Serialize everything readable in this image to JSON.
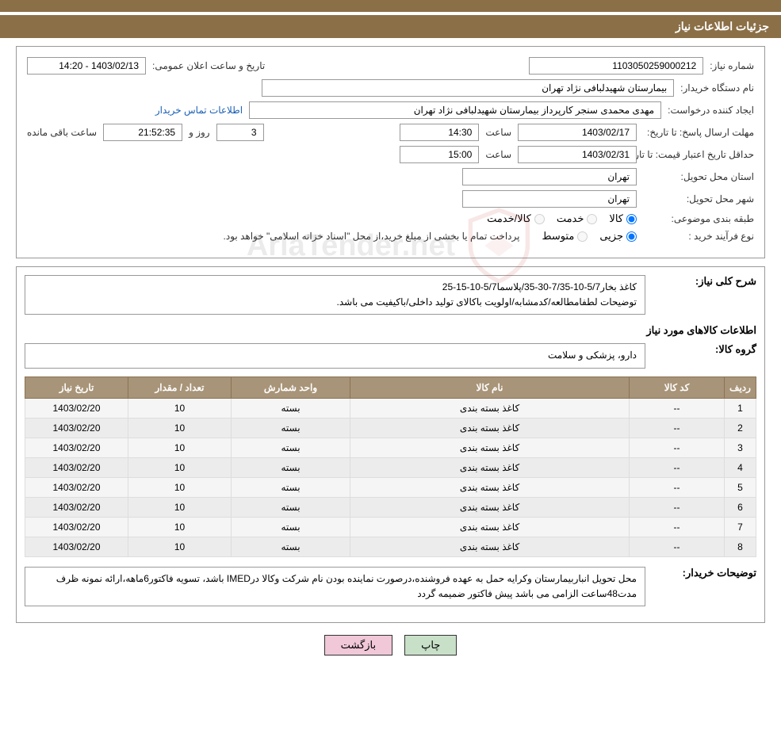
{
  "header": {
    "title": "جزئیات اطلاعات نیاز"
  },
  "info": {
    "need_number_label": "شماره نیاز:",
    "need_number": "1103050259000212",
    "announce_datetime_label": "تاریخ و ساعت اعلان عمومی:",
    "announce_datetime": "1403/02/13 - 14:20",
    "buyer_org_label": "نام دستگاه خریدار:",
    "buyer_org": "بیمارستان شهیدلبافی نژاد تهران",
    "requester_label": "ایجاد کننده درخواست:",
    "requester": "مهدی محمدی سنجر کارپرداز بیمارستان شهیدلبافی نژاد تهران",
    "contact_link": "اطلاعات تماس خریدار",
    "deadline_label": "مهلت ارسال پاسخ: تا تاریخ:",
    "deadline_date": "1403/02/17",
    "time_label": "ساعت",
    "deadline_time": "14:30",
    "days_and_label": "روز و",
    "days_remaining": "3",
    "countdown": "21:52:35",
    "remaining_label": "ساعت باقی مانده",
    "validity_label": "حداقل تاریخ اعتبار قیمت: تا تاریخ:",
    "validity_date": "1403/02/31",
    "validity_time": "15:00",
    "province_label": "استان محل تحویل:",
    "province": "تهران",
    "city_label": "شهر محل تحویل:",
    "city": "تهران",
    "category_label": "طبقه بندی موضوعی:",
    "cat_goods": "کالا",
    "cat_service": "خدمت",
    "cat_goods_service": "کالا/خدمت",
    "process_type_label": "نوع فرآیند خرید :",
    "proc_partial": "جزیی",
    "proc_medium": "متوسط",
    "payment_note": "پرداخت تمام یا بخشی از مبلغ خرید،از محل \"اسناد خزانه اسلامی\" خواهد بود."
  },
  "desc": {
    "general_label": "شرح کلی نیاز:",
    "general_text": "کاغذ بخار5/7-10-7/35-30-35/پلاسما5/7-10-15-25\nتوضیحات لطفامطالعه/کدمشابه/اولویت باکالای تولید داخلی/باکیفیت می باشد.",
    "items_title": "اطلاعات کالاهای مورد نیاز",
    "group_label": "گروه کالا:",
    "group_value": "دارو، پزشکی و سلامت",
    "buyer_notes_label": "توضیحات خریدار:",
    "buyer_notes": "محل تحویل انباربیمارستان وکرایه حمل به عهده فروشنده،درصورت نماینده بودن نام شرکت وکالا درIMED باشد، تسویه فاکتور6ماهه،ارائه نمونه ظرف مدت48ساعت الزامی می باشد پیش فاکتور ضمیمه گردد"
  },
  "table": {
    "columns": [
      "ردیف",
      "کد کالا",
      "نام کالا",
      "واحد شمارش",
      "تعداد / مقدار",
      "تاریخ نیاز"
    ],
    "rows": [
      [
        "1",
        "--",
        "کاغذ بسته بندی",
        "بسته",
        "10",
        "1403/02/20"
      ],
      [
        "2",
        "--",
        "کاغذ بسته بندی",
        "بسته",
        "10",
        "1403/02/20"
      ],
      [
        "3",
        "--",
        "کاغذ بسته بندی",
        "بسته",
        "10",
        "1403/02/20"
      ],
      [
        "4",
        "--",
        "کاغذ بسته بندی",
        "بسته",
        "10",
        "1403/02/20"
      ],
      [
        "5",
        "--",
        "کاغذ بسته بندی",
        "بسته",
        "10",
        "1403/02/20"
      ],
      [
        "6",
        "--",
        "کاغذ بسته بندی",
        "بسته",
        "10",
        "1403/02/20"
      ],
      [
        "7",
        "--",
        "کاغذ بسته بندی",
        "بسته",
        "10",
        "1403/02/20"
      ],
      [
        "8",
        "--",
        "کاغذ بسته بندی",
        "بسته",
        "10",
        "1403/02/20"
      ]
    ]
  },
  "buttons": {
    "print": "چاپ",
    "back": "بازگشت"
  },
  "watermark": {
    "text": "AriaTender.net"
  },
  "colors": {
    "header_bg": "#8b6f47",
    "th_bg": "#a89478",
    "btn_print_bg": "#c8e0c8",
    "btn_back_bg": "#f0c8d8",
    "link": "#1a5fb4"
  }
}
